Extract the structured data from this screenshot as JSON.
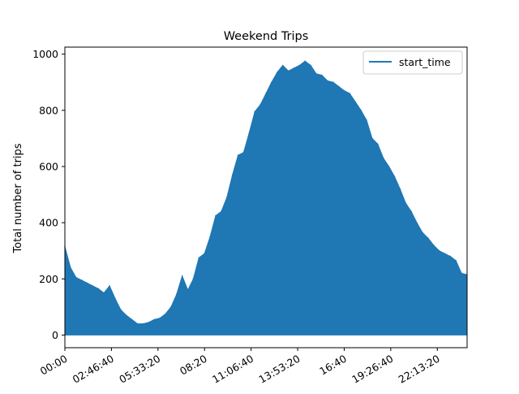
{
  "chart_data": {
    "type": "area",
    "title": "Weekend Trips",
    "xlabel": "",
    "ylabel": "Total number of trips",
    "x_unit": "time of day (HH:MM)",
    "xlim": [
      "00:00",
      "23:59"
    ],
    "ylim": [
      -45,
      1025
    ],
    "x_ticks": [
      "00:00",
      "02:46:40",
      "05:33:20",
      "08:20",
      "11:06:40",
      "13:53:20",
      "16:40",
      "19:26:40",
      "22:13:20"
    ],
    "y_ticks": [
      0,
      200,
      400,
      600,
      800,
      1000
    ],
    "legend": {
      "position": "top-right",
      "entries": [
        "start_time"
      ]
    },
    "grid": false,
    "colors": {
      "series": "#1f77b4"
    },
    "series": [
      {
        "name": "start_time",
        "points": [
          [
            "00:00",
            315
          ],
          [
            "00:20",
            240
          ],
          [
            "00:40",
            205
          ],
          [
            "01:00",
            195
          ],
          [
            "01:20",
            185
          ],
          [
            "01:40",
            175
          ],
          [
            "02:00",
            165
          ],
          [
            "02:20",
            150
          ],
          [
            "02:40",
            175
          ],
          [
            "03:00",
            130
          ],
          [
            "03:20",
            90
          ],
          [
            "03:40",
            70
          ],
          [
            "04:00",
            55
          ],
          [
            "04:20",
            40
          ],
          [
            "04:40",
            40
          ],
          [
            "05:00",
            45
          ],
          [
            "05:20",
            55
          ],
          [
            "05:40",
            60
          ],
          [
            "06:00",
            75
          ],
          [
            "06:20",
            100
          ],
          [
            "06:40",
            145
          ],
          [
            "07:00",
            210
          ],
          [
            "07:20",
            160
          ],
          [
            "07:40",
            200
          ],
          [
            "08:00",
            275
          ],
          [
            "08:20",
            290
          ],
          [
            "08:40",
            350
          ],
          [
            "09:00",
            425
          ],
          [
            "09:20",
            440
          ],
          [
            "09:40",
            490
          ],
          [
            "10:00",
            570
          ],
          [
            "10:20",
            640
          ],
          [
            "10:40",
            650
          ],
          [
            "11:00",
            720
          ],
          [
            "11:20",
            795
          ],
          [
            "11:40",
            820
          ],
          [
            "12:00",
            860
          ],
          [
            "12:20",
            900
          ],
          [
            "12:40",
            935
          ],
          [
            "13:00",
            960
          ],
          [
            "13:20",
            940
          ],
          [
            "13:40",
            950
          ],
          [
            "14:00",
            960
          ],
          [
            "14:20",
            975
          ],
          [
            "14:40",
            960
          ],
          [
            "15:00",
            930
          ],
          [
            "15:20",
            925
          ],
          [
            "15:40",
            905
          ],
          [
            "16:00",
            900
          ],
          [
            "16:20",
            885
          ],
          [
            "16:40",
            870
          ],
          [
            "17:00",
            860
          ],
          [
            "17:20",
            830
          ],
          [
            "17:40",
            800
          ],
          [
            "18:00",
            765
          ],
          [
            "18:20",
            700
          ],
          [
            "18:40",
            680
          ],
          [
            "19:00",
            630
          ],
          [
            "19:20",
            600
          ],
          [
            "19:40",
            565
          ],
          [
            "20:00",
            520
          ],
          [
            "20:20",
            470
          ],
          [
            "20:40",
            440
          ],
          [
            "21:00",
            400
          ],
          [
            "21:20",
            365
          ],
          [
            "21:40",
            345
          ],
          [
            "22:00",
            320
          ],
          [
            "22:20",
            300
          ],
          [
            "22:40",
            290
          ],
          [
            "23:00",
            280
          ],
          [
            "23:20",
            265
          ],
          [
            "23:40",
            220
          ],
          [
            "23:59",
            215
          ]
        ]
      }
    ]
  }
}
